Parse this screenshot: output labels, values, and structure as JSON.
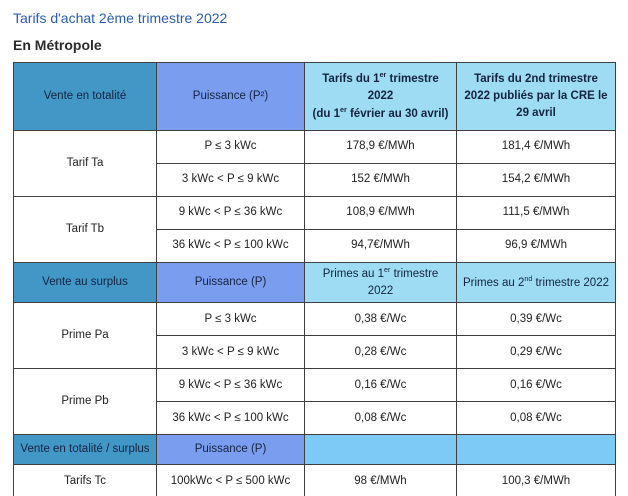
{
  "page": {
    "title": "Tarifs d'achat 2ème trimestre 2022",
    "subtitle": "En Métropole"
  },
  "colors": {
    "title_blue": "#2a5db0",
    "header_teal": "#4397c6",
    "header_periwinkle": "#7b9df0",
    "header_lightblue": "#9edcf3",
    "cell_skyblue": "#7ecaf6",
    "border": "#3f3f3f"
  },
  "table": {
    "header_main": {
      "vente": "Vente en totalité",
      "puissance": "Puissance (P²)",
      "t1_rich": [
        {
          "text": "Tarifs du 1"
        },
        {
          "sup": "er"
        },
        {
          "text": " trimestre 2022"
        },
        {
          "br": true
        },
        {
          "text": "(du 1"
        },
        {
          "sup": "er"
        },
        {
          "text": " février au 30 avril)"
        }
      ],
      "t2": "Tarifs du 2nd  trimestre 2022 publiés par la CRE le 29 avril"
    },
    "groups_tarifs": [
      {
        "label": "Tarif Ta",
        "rows": [
          {
            "puissance": "P ≤ 3 kWc",
            "t1": "178,9 €/MWh",
            "t2": "181,4 €/MWh"
          },
          {
            "puissance": "3 kWc < P ≤ 9 kWc",
            "t1": "152 €/MWh",
            "t2": "154,2  €/MWh"
          }
        ]
      },
      {
        "label": "Tarif Tb",
        "rows": [
          {
            "puissance": "9 kWc < P ≤ 36 kWc",
            "t1": "108,9 €/MWh",
            "t2": "111,5 €/MWh"
          },
          {
            "puissance": "36 kWc < P ≤ 100 kWc",
            "t1": "94,7€/MWh",
            "t2": "96,9 €/MWh"
          }
        ]
      }
    ],
    "header_surplus": {
      "vente": "Vente au surplus",
      "puissance": "Puissance (P)",
      "p1_rich": [
        {
          "text": "Primes au 1"
        },
        {
          "sup": "er"
        },
        {
          "text": " trimestre 2022"
        }
      ],
      "p2_rich": [
        {
          "text": "Primes au 2"
        },
        {
          "sup": "nd"
        },
        {
          "text": " trimestre 2022"
        }
      ]
    },
    "groups_primes": [
      {
        "label": "Prime Pa",
        "rows": [
          {
            "puissance": "P ≤ 3 kWc",
            "t1": "0,38 €/Wc",
            "t2": "0,39 €/Wc"
          },
          {
            "puissance": "3 kWc < P ≤ 9 kWc",
            "t1": "0,28 €/Wc",
            "t2": "0,29 €/Wc"
          }
        ]
      },
      {
        "label": "Prime Pb",
        "rows": [
          {
            "puissance": "9 kWc < P ≤ 36 kWc",
            "t1": "0,16 €/Wc",
            "t2": "0,16 €/Wc"
          },
          {
            "puissance": "36 kWc < P ≤ 100 kWc",
            "t1": "0,08 €/Wc",
            "t2": "0,08 €/Wc"
          }
        ]
      }
    ],
    "header_totalite_surplus": {
      "vente": "Vente en totalité / surplus",
      "puissance": "Puissance (P)",
      "t1": "",
      "t2": ""
    },
    "row_tc": {
      "label": "Tarifs Tc",
      "puissance": "100kWc < P ≤ 500 kWc",
      "t1": "98 €/MWh",
      "t2": "100,3  €/MWh"
    }
  }
}
